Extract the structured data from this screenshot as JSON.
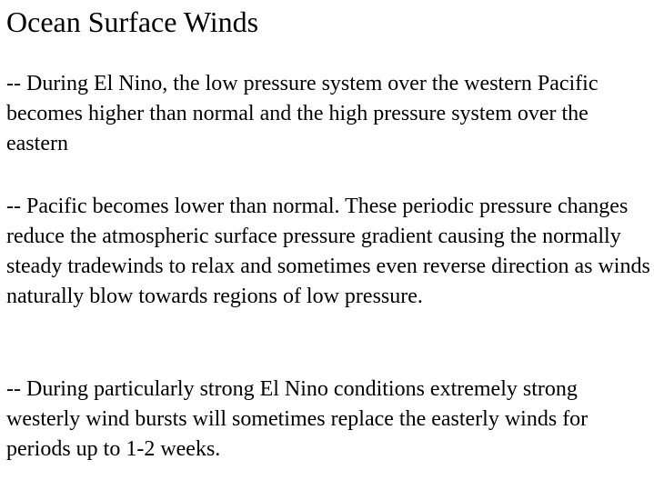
{
  "title": "Ocean Surface Winds",
  "paragraphs": [
    "-- During El Nino, the low pressure system over the western Pacific becomes higher than normal and the high pressure system over the eastern",
    "-- Pacific becomes lower than normal. These periodic pressure changes reduce the atmospheric surface pressure gradient causing the normally steady tradewinds to relax and sometimes even reverse direction as winds naturally blow towards regions of low pressure.",
    "-- During particularly strong El Nino conditions extremely strong westerly wind bursts will sometimes replace the easterly winds for periods up to 1-2 weeks."
  ]
}
